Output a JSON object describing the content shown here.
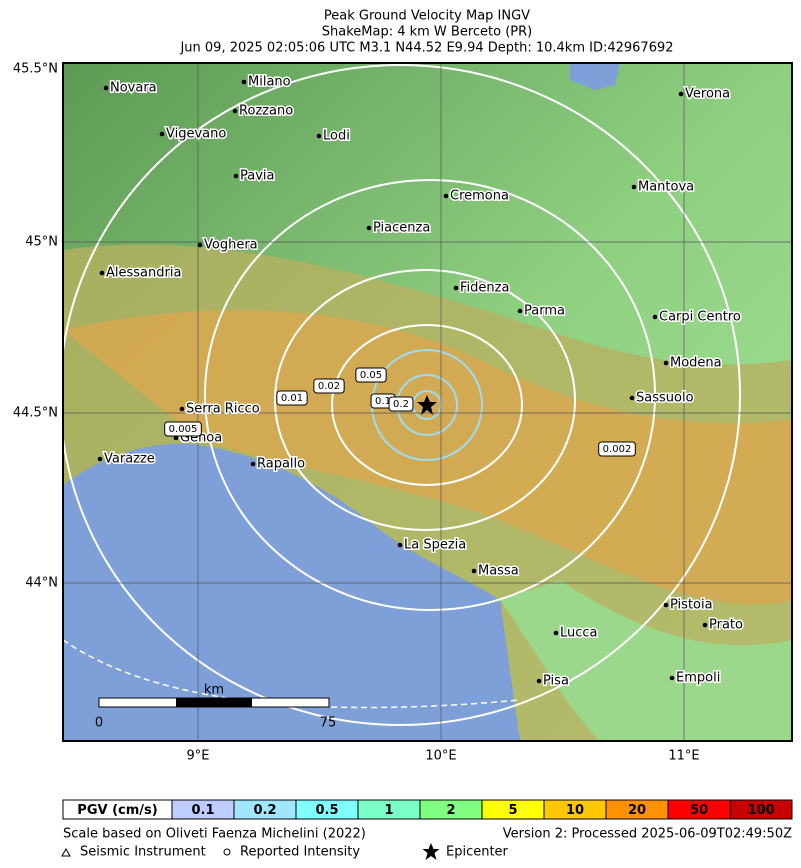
{
  "header": {
    "title": "Peak Ground Velocity Map INGV",
    "subtitle": "ShakeMap: 4 km W Berceto (PR)",
    "event": "Jun 09, 2025 02:05:06 UTC M3.1 N44.52 E9.94 Depth: 10.4km ID:42967692"
  },
  "map": {
    "lat_labels": [
      "45.5°N",
      "45°N",
      "44.5°N",
      "44°N"
    ],
    "lon_labels": [
      "9°E",
      "10°E",
      "11°E"
    ],
    "cities": [
      "Novara",
      "Milano",
      "Rozzano",
      "Vigevano",
      "Lodi",
      "Pavia",
      "Cremona",
      "Piacenza",
      "Voghera",
      "Alessandria",
      "Fidenza",
      "Parma",
      "Verona",
      "Mantova",
      "Carpi Centro",
      "Modena",
      "Sassuolo",
      "Serra Ricco",
      "Genoa",
      "Varazze",
      "Rapallo",
      "La Spezia",
      "Massa",
      "Pistoia",
      "Prato",
      "Lucca",
      "Pisa",
      "Empoli"
    ],
    "contour_labels": [
      "0.005",
      "0.01",
      "0.02",
      "0.05",
      "0.1",
      "0.2",
      "0.002"
    ],
    "scale_bar": {
      "unit": "km",
      "start": "0",
      "end": "75"
    }
  },
  "legend": {
    "title": "PGV (cm/s)",
    "items": [
      {
        "value": 0.1,
        "color": "#bfccff"
      },
      {
        "value": 0.2,
        "color": "#a0e6ff"
      },
      {
        "value": 0.5,
        "color": "#80ffff"
      },
      {
        "value": 1,
        "color": "#7affc8"
      },
      {
        "value": 2,
        "color": "#80ff80"
      },
      {
        "value": 5,
        "color": "#ffff00"
      },
      {
        "value": 10,
        "color": "#ffc800"
      },
      {
        "value": 20,
        "color": "#ff9100"
      },
      {
        "value": 50,
        "color": "#ff0000"
      },
      {
        "value": 100,
        "color": "#c80000"
      }
    ]
  },
  "footer": {
    "source": "Scale based on Oliveti Faenza Michelini (2022)",
    "version": "Version 2: Processed 2025-06-09T02:49:50Z",
    "instrument": "Seismic Instrument",
    "intensity": "Reported Intensity",
    "epicenter": "Epicenter"
  }
}
